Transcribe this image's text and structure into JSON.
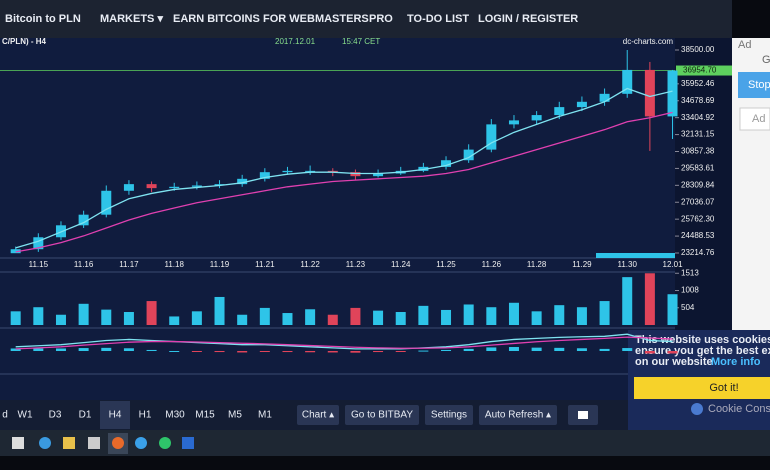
{
  "nav": {
    "brand": "Bitcoin to PLN",
    "items": [
      "MARKETS ▾",
      "EARN BITCOINS",
      "FOR WEBMASTERS",
      "PRO",
      "TO-DO LIST",
      "LOGIN / REGISTER"
    ]
  },
  "chart_header": {
    "symbol": "C/PLN) - H4",
    "date": "2017.12.01",
    "time": "15:47 CET",
    "source": "dc-charts.com"
  },
  "chart_data": {
    "type": "candlestick",
    "categories": [
      null,
      "11.15",
      null,
      "11.16",
      null,
      "11.17",
      null,
      "11.18",
      null,
      "11.19",
      null,
      "11.21",
      null,
      "11.22",
      null,
      "11.23",
      null,
      "11.24",
      null,
      "11.25",
      null,
      "11.26",
      null,
      "11.28",
      null,
      "11.29",
      null,
      "11.30",
      null,
      "12.01"
    ],
    "open": [
      23200,
      23500,
      24400,
      25300,
      26100,
      27900,
      28400,
      28100,
      28200,
      28300,
      28400,
      28800,
      29300,
      29400,
      29400,
      29300,
      29000,
      29200,
      29400,
      29700,
      30200,
      31000,
      32900,
      33200,
      33600,
      34200,
      34600,
      35200,
      37000,
      33500
    ],
    "high": [
      23700,
      24700,
      25600,
      26400,
      28300,
      28700,
      28600,
      28500,
      28600,
      28700,
      29100,
      29600,
      29700,
      29800,
      29600,
      29500,
      29500,
      29700,
      30000,
      30500,
      31400,
      33300,
      33600,
      33900,
      34600,
      35000,
      35600,
      38500,
      37600,
      37000
    ],
    "low": [
      23250,
      23300,
      24200,
      25100,
      25900,
      27600,
      27800,
      27900,
      28000,
      28100,
      28200,
      28600,
      29100,
      29100,
      29000,
      28700,
      28900,
      29100,
      29300,
      29500,
      30000,
      30800,
      32600,
      32900,
      33300,
      33900,
      34300,
      34900,
      30900,
      31800
    ],
    "close": [
      23500,
      24400,
      25300,
      26100,
      27900,
      28400,
      28100,
      28200,
      28300,
      28400,
      28800,
      29300,
      29400,
      29400,
      29300,
      29000,
      29200,
      29400,
      29700,
      30200,
      31000,
      32900,
      33200,
      33600,
      34200,
      34600,
      35200,
      37000,
      33500,
      36954.7
    ],
    "ma_fast": [
      23600,
      24100,
      24800,
      25500,
      26500,
      27300,
      27700,
      28000,
      28150,
      28300,
      28500,
      28900,
      29150,
      29300,
      29300,
      29200,
      29200,
      29300,
      29500,
      29800,
      30400,
      31500,
      32300,
      32900,
      33500,
      34000,
      34600,
      35600,
      35000,
      35400
    ],
    "ma_slow": [
      23300,
      23600,
      24000,
      24500,
      25100,
      25700,
      26200,
      26600,
      27000,
      27300,
      27600,
      27900,
      28200,
      28400,
      28600,
      28700,
      28800,
      28900,
      29000,
      29200,
      29500,
      30000,
      30500,
      31000,
      31500,
      32000,
      32500,
      33100,
      33400,
      33800
    ],
    "up_color": "#2ec4e8",
    "down_color": "#e0445a",
    "ma_fast_color": "#7fe3f0",
    "ma_slow_color": "#e040b0",
    "ylim": [
      23214.76,
      38500
    ],
    "yticks": [
      {
        "value": 38500,
        "label": "38500.00"
      },
      {
        "value": 35952.46,
        "label": "35952.46"
      },
      {
        "value": 34678.69,
        "label": "34678.69"
      },
      {
        "value": 33404.92,
        "label": "33404.92"
      },
      {
        "value": 32131.15,
        "label": "32131.15"
      },
      {
        "value": 30857.38,
        "label": "30857.38"
      },
      {
        "value": 29583.61,
        "label": "29583.61"
      },
      {
        "value": 28309.84,
        "label": "28309.84"
      },
      {
        "value": 27036.07,
        "label": "27036.07"
      },
      {
        "value": 25762.3,
        "label": "25762.30"
      },
      {
        "value": 24488.53,
        "label": "24488.53"
      },
      {
        "value": 23214.76,
        "label": "23214.76"
      }
    ],
    "current_price": {
      "value": 36954.7,
      "label": "36954.70"
    },
    "volume": [
      400,
      520,
      300,
      620,
      450,
      380,
      700,
      250,
      400,
      820,
      300,
      500,
      350,
      460,
      300,
      500,
      420,
      380,
      560,
      440,
      600,
      520,
      650,
      400,
      580,
      520,
      700,
      1400,
      1513,
      900
    ],
    "volume_ylim": [
      0,
      1550
    ],
    "volume_yticks": [
      1513,
      1008,
      504
    ],
    "macd": [
      0.2,
      0.25,
      0.3,
      0.4,
      0.5,
      0.55,
      0.5,
      0.45,
      0.4,
      0.35,
      0.3,
      0.3,
      0.25,
      0.2,
      0.15,
      0.1,
      0.1,
      0.1,
      0.15,
      0.2,
      0.3,
      0.45,
      0.55,
      0.6,
      0.65,
      0.68,
      0.7,
      0.8,
      0.5,
      0.45
    ],
    "signal": [
      0.1,
      0.15,
      0.2,
      0.28,
      0.35,
      0.42,
      0.45,
      0.45,
      0.43,
      0.4,
      0.37,
      0.34,
      0.3,
      0.26,
      0.22,
      0.18,
      0.15,
      0.13,
      0.13,
      0.15,
      0.2,
      0.28,
      0.36,
      0.44,
      0.5,
      0.55,
      0.6,
      0.66,
      0.62,
      0.57
    ],
    "histogram": [
      0.12,
      0.12,
      0.12,
      0.14,
      0.15,
      0.13,
      0.05,
      0,
      -0.03,
      -0.05,
      -0.07,
      -0.04,
      -0.05,
      -0.06,
      -0.07,
      -0.08,
      -0.05,
      -0.03,
      0.02,
      0.05,
      0.1,
      0.17,
      0.19,
      0.16,
      0.15,
      0.13,
      0.1,
      0.14,
      -0.12,
      -0.12
    ],
    "macd_ylim": [
      -1,
      1
    ]
  },
  "toolbar": {
    "timeframes": [
      "d",
      "W1",
      "D3",
      "D1",
      "H4",
      "H1",
      "M30",
      "M15",
      "M5",
      "M1"
    ],
    "active": "H4",
    "buttons": [
      "Chart ▴",
      "Go to BITBAY",
      "Settings",
      "Auto Refresh ▴"
    ]
  },
  "ad": {
    "label": "Ad",
    "letter": "G",
    "button": "Stop",
    "label2": "Ad"
  },
  "cookie": {
    "line1": "This website uses cookies t",
    "line2": "ensure you get the best exp",
    "line3": "on our website",
    "link": "More info",
    "button": "Got it!",
    "brand": "Cookie Consent"
  }
}
